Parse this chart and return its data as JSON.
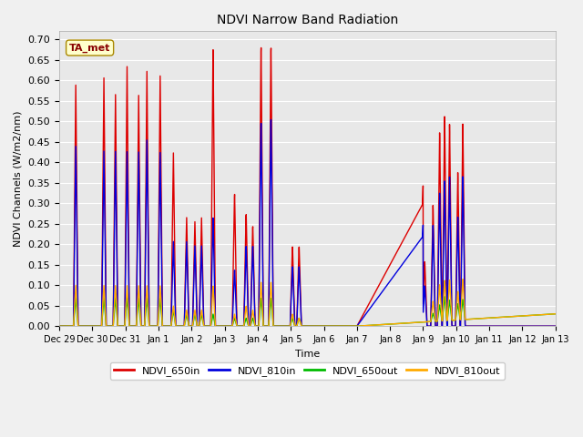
{
  "title": "NDVI Narrow Band Radiation",
  "ylabel": "NDVI Channels (W/m2/nm)",
  "xlabel": "Time",
  "annotation_label": "TA_met",
  "ylim": [
    0.0,
    0.72
  ],
  "yticks": [
    0.0,
    0.05,
    0.1,
    0.15,
    0.2,
    0.25,
    0.3,
    0.35,
    0.4,
    0.45,
    0.5,
    0.55,
    0.6,
    0.65,
    0.7
  ],
  "x_tick_labels": [
    "Dec 29",
    "Dec 30",
    "Dec 31",
    "Jan 1",
    "Jan 2",
    "Jan 3",
    "Jan 4",
    "Jan 5",
    "Jan 6",
    "Jan 7",
    "Jan 8",
    "Jan 9",
    "Jan 10",
    "Jan 11",
    "Jan 12",
    "Jan 13"
  ],
  "colors": {
    "NDVI_650in": "#dd0000",
    "NDVI_810in": "#0000dd",
    "NDVI_650out": "#00bb00",
    "NDVI_810out": "#ffaa00"
  },
  "bg_color": "#e8e8e8",
  "fig_bg": "#f0f0f0",
  "linewidth": 1.0
}
